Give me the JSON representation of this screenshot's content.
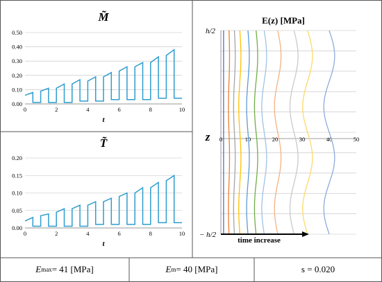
{
  "colors": {
    "border": "#555555",
    "axis": "#7f7f7f",
    "grid": "#bfbfbf",
    "series": "#2e9ccf",
    "arrow": "#000000"
  },
  "chart_data": [
    {
      "type": "line",
      "id": "M-tilde",
      "title": "M̃",
      "xlabel": "t",
      "ylabel": "",
      "xlim": [
        0,
        10
      ],
      "ylim": [
        0,
        0.5
      ],
      "xticks": [
        "0",
        "2",
        "4",
        "6",
        "8",
        "10"
      ],
      "yticks": [
        "0.00",
        "0.10",
        "0.20",
        "0.30",
        "0.40",
        "0.50"
      ],
      "grid": true,
      "series": [
        {
          "x": [
            0,
            0.5,
            0.5,
            1.0,
            1.0,
            1.5,
            1.5,
            2.0,
            2.0,
            2.5,
            2.5,
            3.0,
            3.0,
            3.5,
            3.5,
            4.0,
            4.0,
            4.5,
            4.5,
            5.0,
            5.0,
            5.5,
            5.5,
            6.0,
            6.0,
            6.5,
            6.5,
            7.0,
            7.0,
            7.5,
            7.5,
            8.0,
            8.0,
            8.5,
            8.5,
            9.0,
            9.0,
            9.5,
            9.5,
            10.0
          ],
          "y": [
            0.06,
            0.08,
            0.01,
            0.01,
            0.09,
            0.11,
            0.01,
            0.01,
            0.11,
            0.14,
            0.01,
            0.01,
            0.14,
            0.17,
            0.02,
            0.02,
            0.16,
            0.19,
            0.02,
            0.02,
            0.19,
            0.22,
            0.03,
            0.03,
            0.23,
            0.26,
            0.03,
            0.03,
            0.26,
            0.29,
            0.03,
            0.03,
            0.29,
            0.33,
            0.04,
            0.04,
            0.34,
            0.38,
            0.04,
            0.04
          ]
        }
      ]
    },
    {
      "type": "line",
      "id": "T-tilde",
      "title": "T̃",
      "xlabel": "t",
      "ylabel": "",
      "xlim": [
        0,
        10
      ],
      "ylim": [
        0,
        0.2
      ],
      "xticks": [
        "0",
        "2",
        "4",
        "6",
        "8",
        "10"
      ],
      "yticks": [
        "0.00",
        "0.05",
        "0.10",
        "0.15",
        "0.20"
      ],
      "grid": true,
      "series": [
        {
          "x": [
            0,
            0.5,
            0.5,
            1.0,
            1.0,
            1.5,
            1.5,
            2.0,
            2.0,
            2.5,
            2.5,
            3.0,
            3.0,
            3.5,
            3.5,
            4.0,
            4.0,
            4.5,
            4.5,
            5.0,
            5.0,
            5.5,
            5.5,
            6.0,
            6.0,
            6.5,
            6.5,
            7.0,
            7.0,
            7.5,
            7.5,
            8.0,
            8.0,
            8.5,
            8.5,
            9.0,
            9.0,
            9.5,
            9.5,
            10.0
          ],
          "y": [
            0.02,
            0.03,
            0.005,
            0.005,
            0.035,
            0.04,
            0.005,
            0.005,
            0.045,
            0.055,
            0.005,
            0.005,
            0.055,
            0.065,
            0.005,
            0.005,
            0.065,
            0.075,
            0.01,
            0.01,
            0.075,
            0.085,
            0.01,
            0.01,
            0.09,
            0.1,
            0.01,
            0.01,
            0.1,
            0.115,
            0.01,
            0.01,
            0.115,
            0.13,
            0.015,
            0.015,
            0.135,
            0.15,
            0.015,
            0.015
          ]
        }
      ]
    },
    {
      "type": "line",
      "id": "E-profile",
      "title": "E(z) [MPa]",
      "xlabel": "",
      "ylabel": "z",
      "xlim": [
        0,
        50
      ],
      "xticks": [
        "0",
        "10",
        "20",
        "30",
        "40",
        "50"
      ],
      "ytop_label": "h/2",
      "ybottom_label": "− h/2",
      "annotation": "time increase",
      "grid": true,
      "curves": [
        {
          "base": 1,
          "amp": 0.0,
          "color": "#4472c4"
        },
        {
          "base": 3,
          "amp": 0.2,
          "color": "#ed7d31"
        },
        {
          "base": 5,
          "amp": 0.3,
          "color": "#a5a5a5"
        },
        {
          "base": 7,
          "amp": 0.4,
          "color": "#ffc000"
        },
        {
          "base": 10,
          "amp": 0.5,
          "color": "#5b9bd5"
        },
        {
          "base": 13,
          "amp": 0.6,
          "color": "#70ad47"
        },
        {
          "base": 16,
          "amp": 0.9,
          "color": "#9dc3e6"
        },
        {
          "base": 21,
          "amp": 1.2,
          "color": "#f4b183"
        },
        {
          "base": 27,
          "amp": 1.5,
          "color": "#c9c9c9"
        },
        {
          "base": 32,
          "amp": 1.8,
          "color": "#ffd966"
        },
        {
          "base": 40,
          "amp": 2.0,
          "color": "#8faadc"
        }
      ]
    }
  ],
  "footer": {
    "emax_label": "E",
    "emax_sub": "max",
    "emax_value": "= 41 [MPa]",
    "em_label": "E",
    "em_sub": "m",
    "em_value": "= 40 [MPa]",
    "s_text": "s = 0.020"
  }
}
